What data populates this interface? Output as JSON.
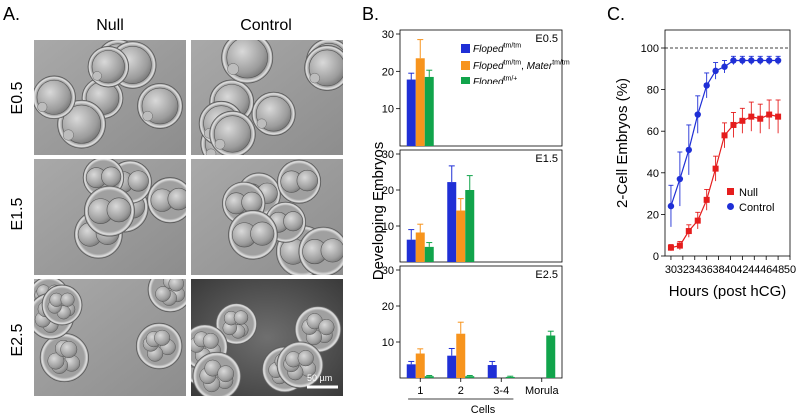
{
  "panels": {
    "a": {
      "letter": "A.",
      "col_labels": [
        "Null",
        "Control"
      ],
      "row_labels": [
        "E0.5",
        "E1.5",
        "E2.5"
      ],
      "scale_bar": "50 µm"
    },
    "b": {
      "letter": "B.",
      "ylabel": "Developing Embryos",
      "xaxis_title": "Cells",
      "legend": [
        {
          "html": "<i>Floped</i><sup>tm/tm</sup>",
          "color": "#1f2fd6"
        },
        {
          "html": "<i>Floped</i><sup>tm/tm</sup>, <i>Mater</i><sup>tm/tm</sup>",
          "color": "#f7941d"
        },
        {
          "html": "<i>Floped</i><sup>tm/+</sup>",
          "color": "#11a44b"
        }
      ]
    },
    "c": {
      "letter": "C."
    }
  },
  "chart_data": [
    {
      "type": "bar",
      "panel": "B-E0.5",
      "title": "E0.5",
      "categories": [
        "1",
        "2",
        "3-4",
        "Morula"
      ],
      "ylim": [
        0,
        30
      ],
      "yticks": [
        10,
        20,
        30
      ],
      "series": [
        {
          "name": "Floped tm/tm",
          "color": "#1f2fd6",
          "values": [
            17.8,
            null,
            null,
            null
          ],
          "errors": [
            1.7,
            null,
            null,
            null
          ]
        },
        {
          "name": "Floped tm/tm, Mater tm/tm",
          "color": "#f7941d",
          "values": [
            23.5,
            null,
            null,
            null
          ],
          "errors": [
            5.0,
            null,
            null,
            null
          ]
        },
        {
          "name": "Floped tm/+",
          "color": "#11a44b",
          "values": [
            18.5,
            null,
            null,
            null
          ],
          "errors": [
            1.8,
            null,
            null,
            null
          ]
        }
      ]
    },
    {
      "type": "bar",
      "panel": "B-E1.5",
      "title": "E1.5",
      "categories": [
        "1",
        "2",
        "3-4",
        "Morula"
      ],
      "ylim": [
        0,
        30
      ],
      "yticks": [
        10,
        20,
        30
      ],
      "series": [
        {
          "name": "Floped tm/tm",
          "color": "#1f2fd6",
          "values": [
            6.2,
            22.2,
            null,
            null
          ],
          "errors": [
            2.8,
            4.5,
            null,
            null
          ]
        },
        {
          "name": "Floped tm/tm, Mater tm/tm",
          "color": "#f7941d",
          "values": [
            8.2,
            14.3,
            null,
            null
          ],
          "errors": [
            2.3,
            3.3,
            null,
            null
          ]
        },
        {
          "name": "Floped tm/+",
          "color": "#11a44b",
          "values": [
            4.2,
            20.0,
            null,
            null
          ],
          "errors": [
            1.2,
            4.0,
            null,
            null
          ]
        }
      ]
    },
    {
      "type": "bar",
      "panel": "B-E2.5",
      "title": "E2.5",
      "categories": [
        "1",
        "2",
        "3-4",
        "Morula"
      ],
      "ylim": [
        0,
        30
      ],
      "yticks": [
        10,
        20,
        30
      ],
      "series": [
        {
          "name": "Floped tm/tm",
          "color": "#1f2fd6",
          "values": [
            3.8,
            6.2,
            3.6,
            0
          ],
          "errors": [
            0.8,
            2.0,
            1.0,
            0
          ]
        },
        {
          "name": "Floped tm/tm, Mater tm/tm",
          "color": "#f7941d",
          "values": [
            6.8,
            12.3,
            0,
            0
          ],
          "errors": [
            1.3,
            3.2,
            0,
            0
          ]
        },
        {
          "name": "Floped tm/+",
          "color": "#11a44b",
          "values": [
            0.5,
            0.5,
            0.3,
            11.8
          ],
          "errors": [
            0.2,
            0.2,
            0.2,
            1.2
          ]
        }
      ]
    },
    {
      "type": "line",
      "panel": "C",
      "xlabel": "Hours (post hCG)",
      "ylabel": "2-Cell Embryos (%)",
      "xlim": [
        29,
        50
      ],
      "ylim": [
        0,
        100
      ],
      "xticks": [
        30,
        32,
        34,
        36,
        38,
        40,
        42,
        44,
        46,
        48,
        50
      ],
      "yticks": [
        0,
        20,
        40,
        60,
        80,
        100
      ],
      "reference_line_y": 100,
      "legend_position": "lower-right",
      "series": [
        {
          "name": "Null",
          "color": "#e51d1d",
          "marker": "square",
          "x": [
            30,
            31.5,
            33,
            34.5,
            36,
            37.5,
            39,
            40.5,
            42,
            43.5,
            45,
            46.5,
            48
          ],
          "y": [
            4,
            5,
            12,
            17,
            27,
            42,
            58,
            63,
            65,
            67,
            66,
            68,
            67
          ],
          "err": [
            1.5,
            2,
            3,
            4,
            5,
            6,
            6,
            6,
            6,
            7,
            7,
            7,
            8
          ]
        },
        {
          "name": "Control",
          "color": "#1f2fd6",
          "marker": "circle",
          "x": [
            30,
            31.5,
            33,
            34.5,
            36,
            37.5,
            39,
            40.5,
            42,
            43.5,
            45,
            46.5,
            48
          ],
          "y": [
            24,
            37,
            51,
            68,
            82,
            89,
            91,
            94,
            94,
            94,
            94,
            94,
            94
          ],
          "err": [
            10,
            13,
            12,
            9,
            6,
            4,
            3,
            2,
            2,
            2,
            2,
            2,
            2
          ]
        }
      ]
    }
  ]
}
